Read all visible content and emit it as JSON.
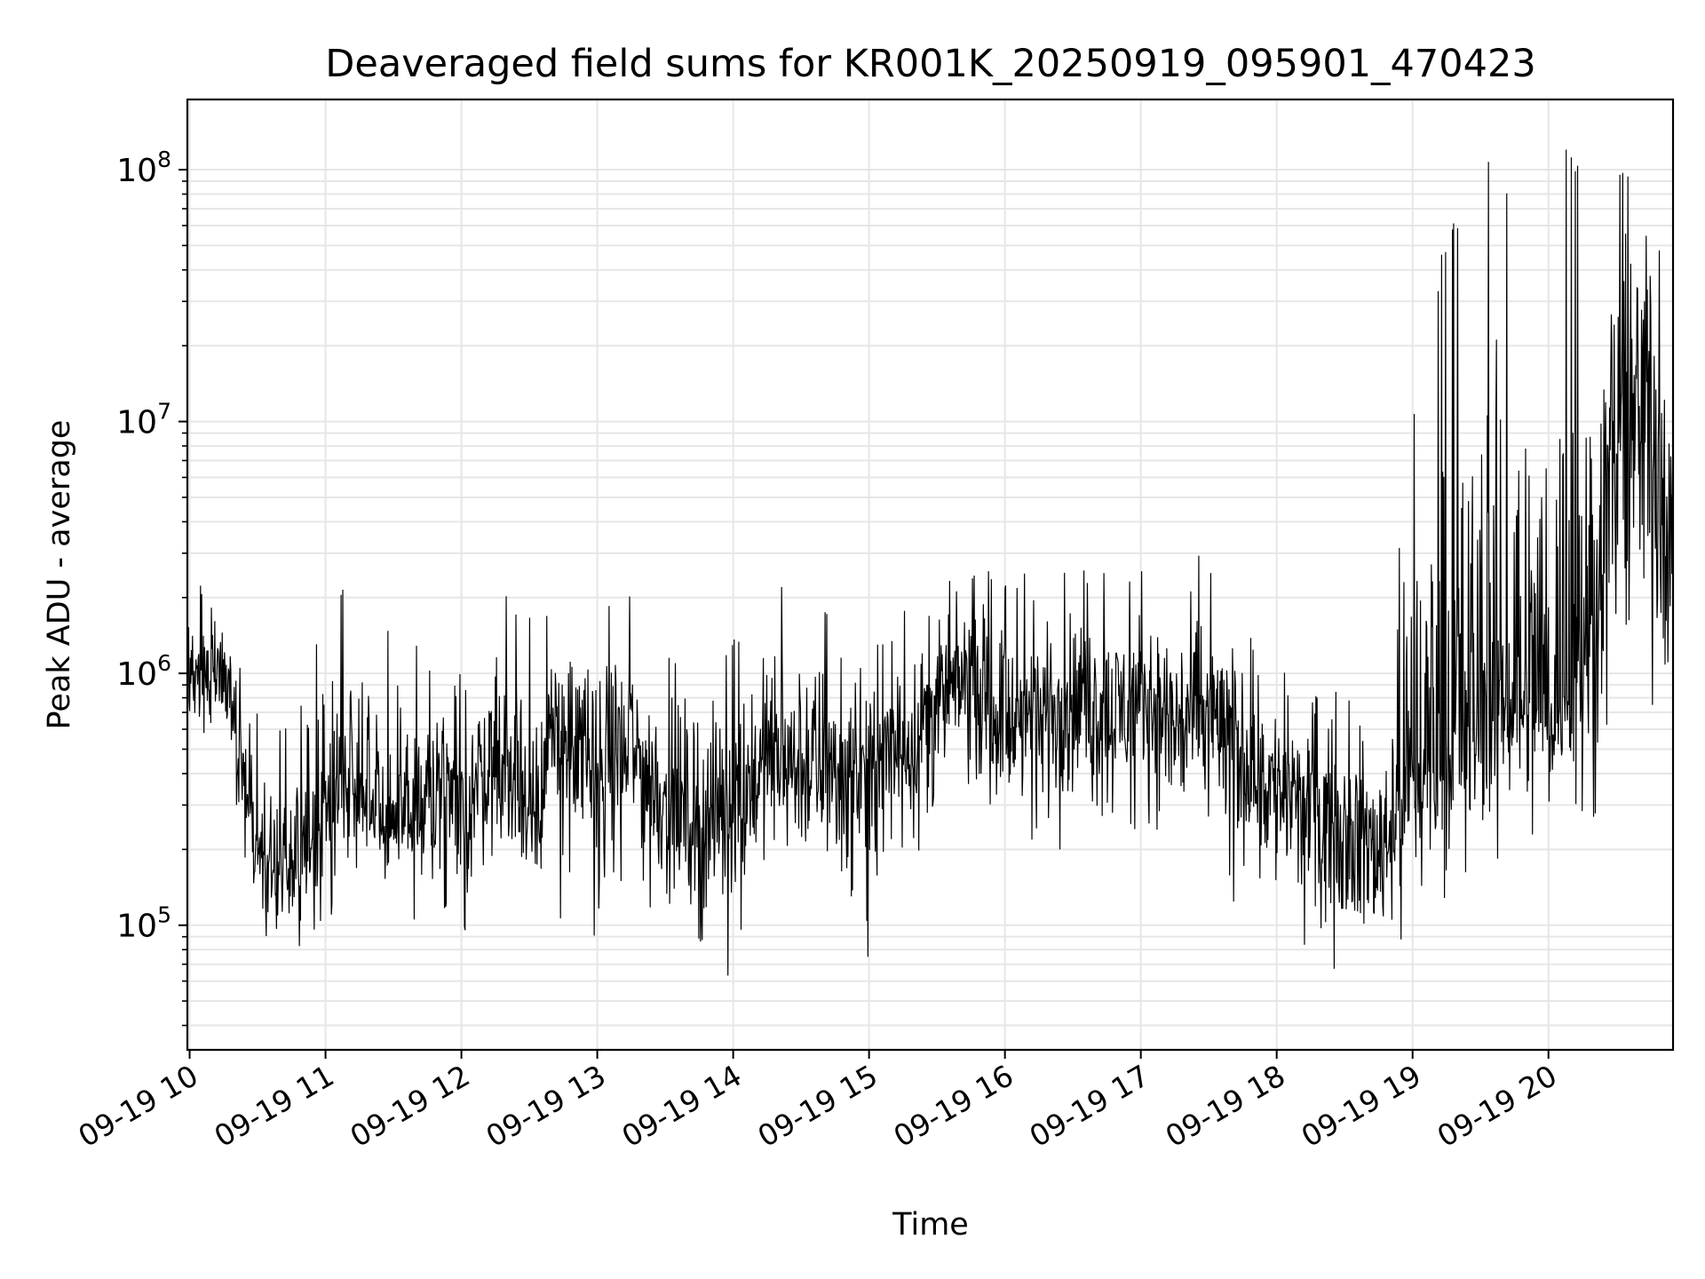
{
  "chart_data": {
    "type": "line",
    "title": "Deaveraged field sums for KR001K_20250919_095901_470423",
    "xlabel": "Time",
    "ylabel": "Peak ADU - average",
    "x_axis": {
      "kind": "time",
      "range": [
        "09-19 09:59",
        "09-19 20:55"
      ],
      "ticks": [
        "09-19 10",
        "09-19 11",
        "09-19 12",
        "09-19 13",
        "09-19 14",
        "09-19 15",
        "09-19 16",
        "09-19 17",
        "09-19 18",
        "09-19 19",
        "09-19 20"
      ]
    },
    "y_axis": {
      "scale": "log",
      "range": [
        32000,
        190000000
      ],
      "ticks": [
        {
          "base": "10",
          "exp": "5"
        },
        {
          "base": "10",
          "exp": "6"
        },
        {
          "base": "10",
          "exp": "7"
        },
        {
          "base": "10",
          "exp": "8"
        }
      ]
    },
    "grid": true,
    "series": [
      {
        "color": "#000000",
        "x": [
          "09-19 09:59",
          "09-19 10:15",
          "09-19 10:30",
          "09-19 10:45",
          "09-19 11:00",
          "09-19 11:15",
          "09-19 11:30",
          "09-19 11:45",
          "09-19 12:00",
          "09-19 12:15",
          "09-19 12:30",
          "09-19 12:45",
          "09-19 13:00",
          "09-19 13:15",
          "09-19 13:30",
          "09-19 13:45",
          "09-19 14:00",
          "09-19 14:15",
          "09-19 14:30",
          "09-19 14:45",
          "09-19 15:00",
          "09-19 15:15",
          "09-19 15:30",
          "09-19 15:45",
          "09-19 16:00",
          "09-19 16:15",
          "09-19 16:30",
          "09-19 16:45",
          "09-19 17:00",
          "09-19 17:15",
          "09-19 17:30",
          "09-19 17:45",
          "09-19 18:00",
          "09-19 18:15",
          "09-19 18:30",
          "09-19 18:45",
          "09-19 19:00",
          "09-19 19:15",
          "09-19 19:30",
          "09-19 19:45",
          "09-19 20:00",
          "09-19 20:15",
          "09-19 20:30",
          "09-19 20:45",
          "09-19 20:55"
        ],
        "y": [
          900000,
          1100000,
          200000,
          150000,
          300000,
          400000,
          250000,
          300000,
          250000,
          500000,
          300000,
          600000,
          400000,
          500000,
          300000,
          250000,
          300000,
          450000,
          400000,
          400000,
          400000,
          500000,
          800000,
          1000000,
          600000,
          700000,
          800000,
          700000,
          800000,
          650000,
          700000,
          500000,
          350000,
          300000,
          250000,
          200000,
          400000,
          500000,
          600000,
          900000,
          700000,
          1000000,
          8000000,
          15000000,
          3000000
        ],
        "y_low": [
          450000,
          500000,
          100000,
          55000,
          100000,
          150000,
          90000,
          100000,
          80000,
          150000,
          90000,
          100000,
          80000,
          150000,
          90000,
          80000,
          60000,
          150000,
          130000,
          100000,
          60000,
          200000,
          150000,
          250000,
          200000,
          150000,
          200000,
          150000,
          250000,
          100000,
          150000,
          100000,
          70000,
          60000,
          60000,
          50000,
          100000,
          120000,
          150000,
          200000,
          250000,
          250000,
          250000,
          200000,
          500000
        ],
        "y_high": [
          2200000,
          2600000,
          700000,
          600000,
          2100000,
          2700000,
          1500000,
          1300000,
          2300000,
          2400000,
          2100000,
          2200000,
          2100000,
          2200000,
          1200000,
          1600000,
          1400000,
          2300000,
          3600000,
          1500000,
          1300000,
          2000000,
          2200000,
          3100000,
          2800000,
          2300000,
          2700000,
          2500000,
          2700000,
          2500000,
          3200000,
          1600000,
          1200000,
          800000,
          900000,
          700000,
          12000000,
          60000000,
          120000000,
          95000000,
          125000000,
          125000000,
          120000000,
          115000000,
          20000000
        ]
      }
    ]
  }
}
